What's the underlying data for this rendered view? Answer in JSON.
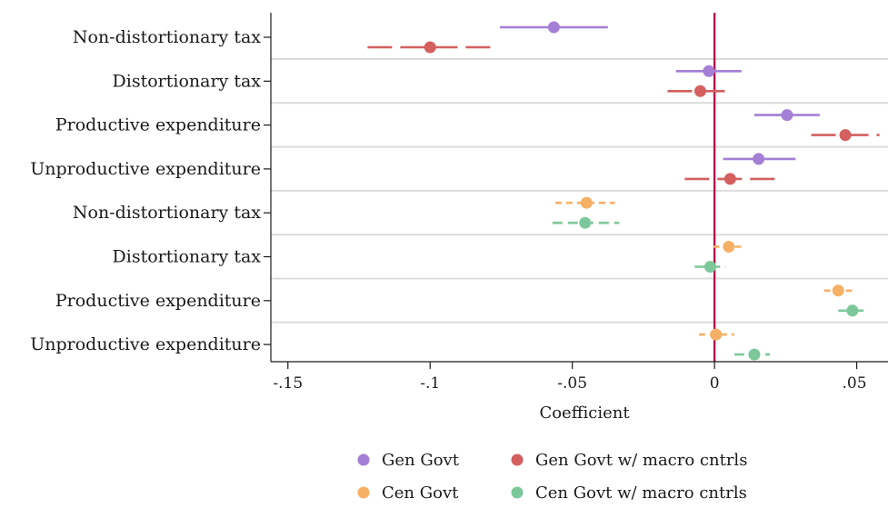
{
  "chart_data": {
    "type": "scatter",
    "subtype": "coefficient-plot",
    "title": "",
    "xlabel": "Coefficient",
    "ylabel": "",
    "xlim": [
      -0.156,
      0.061
    ],
    "xticks": [
      -0.15,
      -0.1,
      -0.05,
      0,
      0.05
    ],
    "xtick_labels": [
      "-.15",
      "-.1",
      "-.05",
      "0",
      ".05"
    ],
    "reference_line": {
      "x": 0,
      "color": "#b0134a"
    },
    "grid": "horizontal",
    "legend_position": "bottom",
    "categories": [
      "Non-distortionary tax",
      "Distortionary tax",
      "Productive expenditure",
      "Unproductive expenditure",
      "Non-distortionary tax",
      "Distortionary tax",
      "Productive expenditure",
      "Unproductive expenditure"
    ],
    "series": [
      {
        "name": "Gen Govt",
        "color": "#a57ed6",
        "line_style": "solid",
        "offset": "upper",
        "points": [
          {
            "row": 0,
            "est": -0.0565,
            "lo": -0.0755,
            "hi": -0.0375
          },
          {
            "row": 1,
            "est": -0.002,
            "lo": -0.0135,
            "hi": 0.0095
          },
          {
            "row": 2,
            "est": 0.0255,
            "lo": 0.014,
            "hi": 0.037
          },
          {
            "row": 3,
            "est": 0.0155,
            "lo": 0.003,
            "hi": 0.0285
          }
        ]
      },
      {
        "name": "Gen Govt w/ macro cntrls",
        "color": "#d45f5f",
        "line_style": "long-dash",
        "offset": "lower",
        "points": [
          {
            "row": 0,
            "est": -0.1,
            "lo": -0.122,
            "hi": -0.078
          },
          {
            "row": 1,
            "est": -0.005,
            "lo": -0.0165,
            "hi": 0.0055
          },
          {
            "row": 2,
            "est": 0.046,
            "lo": 0.034,
            "hi": 0.058
          },
          {
            "row": 3,
            "est": 0.0055,
            "lo": -0.0105,
            "hi": 0.022
          }
        ]
      },
      {
        "name": "Cen Govt",
        "color": "#f6b066",
        "line_style": "short-dash",
        "offset": "upper",
        "points": [
          {
            "row": 4,
            "est": -0.045,
            "lo": -0.056,
            "hi": -0.035
          },
          {
            "row": 5,
            "est": 0.005,
            "lo": -0.0005,
            "hi": 0.0095
          },
          {
            "row": 6,
            "est": 0.0435,
            "lo": 0.0385,
            "hi": 0.049
          },
          {
            "row": 7,
            "est": 0.0005,
            "lo": -0.0055,
            "hi": 0.007
          }
        ]
      },
      {
        "name": "Cen Govt w/ macro cntrls",
        "color": "#7cc89a",
        "line_style": "dash",
        "offset": "lower",
        "points": [
          {
            "row": 4,
            "est": -0.0455,
            "lo": -0.057,
            "hi": -0.0335
          },
          {
            "row": 5,
            "est": -0.0015,
            "lo": -0.007,
            "hi": 0.004
          },
          {
            "row": 6,
            "est": 0.0485,
            "lo": 0.0435,
            "hi": 0.054
          },
          {
            "row": 7,
            "est": 0.014,
            "lo": 0.007,
            "hi": 0.0195
          }
        ]
      }
    ]
  }
}
